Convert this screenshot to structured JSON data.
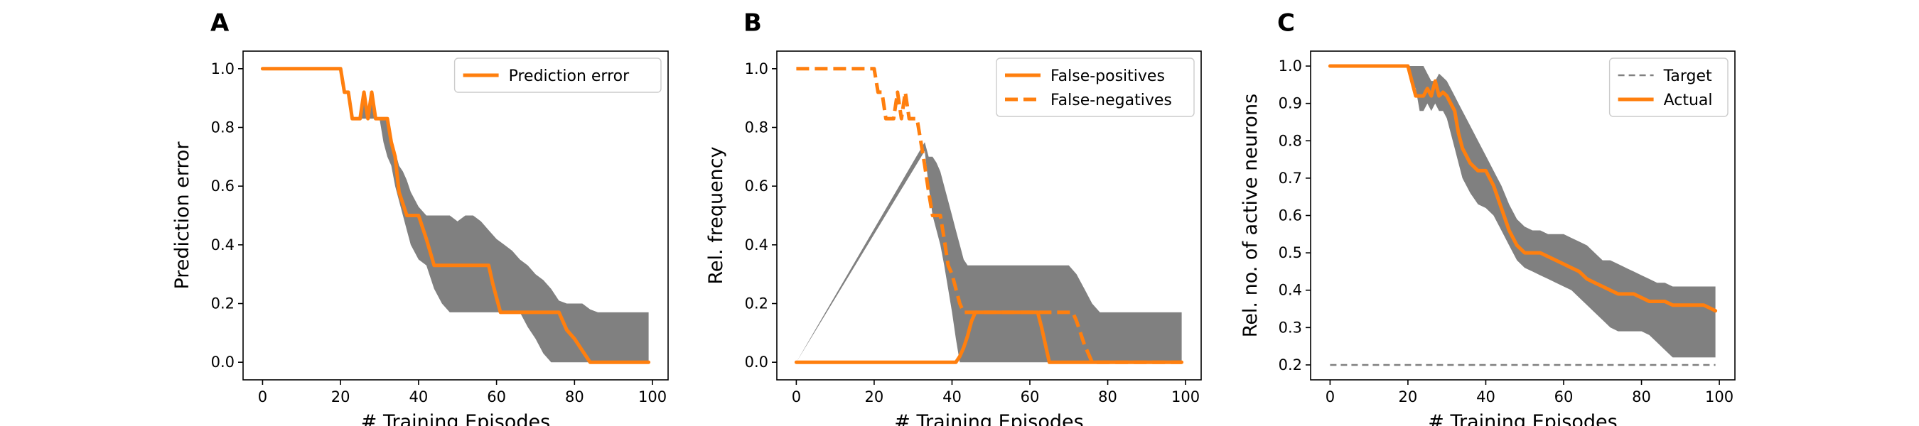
{
  "figure": {
    "background": "#ffffff"
  },
  "chart_data": [
    {
      "type": "line",
      "panel_letter": "A",
      "xlabel": "# Training Episodes",
      "ylabel": "Prediction error",
      "xlim": [
        -5,
        104
      ],
      "ylim": [
        -0.06,
        1.06
      ],
      "xticks": [
        0,
        20,
        40,
        60,
        80,
        100
      ],
      "xtick_labels": [
        "0",
        "20",
        "40",
        "60",
        "80",
        "100"
      ],
      "yticks": [
        0.0,
        0.2,
        0.4,
        0.6,
        0.8,
        1.0
      ],
      "ytick_labels": [
        "0.0",
        "0.2",
        "0.4",
        "0.6",
        "0.8",
        "1.0"
      ],
      "grid": false,
      "legend_position": "top-right",
      "band_color": "#808080",
      "band": {
        "x": [
          0,
          20,
          21,
          22,
          23,
          24,
          25,
          26,
          27,
          28,
          29,
          30,
          31,
          32,
          33,
          34,
          35,
          36,
          37,
          38,
          40,
          42,
          44,
          46,
          48,
          50,
          52,
          54,
          56,
          58,
          60,
          62,
          64,
          66,
          68,
          70,
          72,
          74,
          76,
          78,
          80,
          82,
          84,
          86,
          88,
          90,
          92,
          94,
          96,
          98,
          99
        ],
        "upper": [
          1.0,
          1.0,
          0.92,
          0.92,
          0.83,
          0.83,
          0.83,
          0.92,
          0.83,
          0.92,
          0.83,
          0.83,
          0.83,
          0.83,
          0.75,
          0.72,
          0.67,
          0.65,
          0.62,
          0.58,
          0.53,
          0.5,
          0.5,
          0.5,
          0.5,
          0.48,
          0.5,
          0.5,
          0.48,
          0.45,
          0.42,
          0.4,
          0.38,
          0.35,
          0.33,
          0.3,
          0.28,
          0.25,
          0.21,
          0.2,
          0.2,
          0.2,
          0.18,
          0.17,
          0.17,
          0.17,
          0.17,
          0.17,
          0.17,
          0.17,
          0.17
        ],
        "lower": [
          1.0,
          1.0,
          0.92,
          0.92,
          0.83,
          0.83,
          0.83,
          0.83,
          0.83,
          0.83,
          0.83,
          0.83,
          0.75,
          0.7,
          0.67,
          0.6,
          0.55,
          0.5,
          0.45,
          0.4,
          0.35,
          0.33,
          0.25,
          0.2,
          0.17,
          0.17,
          0.17,
          0.17,
          0.17,
          0.17,
          0.17,
          0.17,
          0.17,
          0.17,
          0.12,
          0.08,
          0.03,
          0.0,
          0.0,
          0.0,
          0.0,
          0.0,
          0.0,
          0.0,
          0.0,
          0.0,
          0.0,
          0.0,
          0.0,
          0.0,
          0.0
        ]
      },
      "series": [
        {
          "name": "Prediction error",
          "color": "#ff7f0e",
          "dash": "solid",
          "x": [
            0,
            20,
            21,
            22,
            23,
            24,
            25,
            26,
            27,
            28,
            29,
            30,
            31,
            32,
            33,
            34,
            35,
            36,
            37,
            38,
            40,
            42,
            44,
            46,
            48,
            50,
            52,
            54,
            56,
            57,
            58,
            59,
            60,
            61,
            62,
            64,
            66,
            68,
            70,
            72,
            74,
            76,
            77,
            78,
            80,
            82,
            84,
            86,
            88,
            90,
            92,
            94,
            96,
            98,
            99
          ],
          "y": [
            1.0,
            1.0,
            0.92,
            0.92,
            0.83,
            0.83,
            0.83,
            0.92,
            0.83,
            0.92,
            0.83,
            0.83,
            0.83,
            0.83,
            0.75,
            0.7,
            0.58,
            0.54,
            0.5,
            0.5,
            0.5,
            0.42,
            0.33,
            0.33,
            0.33,
            0.33,
            0.33,
            0.33,
            0.33,
            0.33,
            0.33,
            0.27,
            0.22,
            0.17,
            0.17,
            0.17,
            0.17,
            0.17,
            0.17,
            0.17,
            0.17,
            0.17,
            0.14,
            0.11,
            0.08,
            0.04,
            0.0,
            0.0,
            0.0,
            0.0,
            0.0,
            0.0,
            0.0,
            0.0,
            0.0
          ]
        }
      ]
    },
    {
      "type": "line",
      "panel_letter": "B",
      "xlabel": "# Training Episodes",
      "ylabel": "Rel. frequency",
      "xlim": [
        -5,
        104
      ],
      "ylim": [
        -0.06,
        1.06
      ],
      "xticks": [
        0,
        20,
        40,
        60,
        80,
        100
      ],
      "xtick_labels": [
        "0",
        "20",
        "40",
        "60",
        "80",
        "100"
      ],
      "yticks": [
        0.0,
        0.2,
        0.4,
        0.6,
        0.8,
        1.0
      ],
      "ytick_labels": [
        "0.0",
        "0.2",
        "0.4",
        "0.6",
        "0.8",
        "1.0"
      ],
      "grid": false,
      "legend_position": "top-right",
      "band_color": "#808080",
      "band": {
        "x": [
          0,
          33,
          34,
          35,
          36,
          37,
          38,
          39,
          40,
          41,
          42,
          43,
          44,
          45,
          46,
          48,
          50,
          52,
          54,
          56,
          58,
          60,
          62,
          64,
          66,
          68,
          70,
          72,
          74,
          76,
          78,
          80,
          82,
          84,
          86,
          88,
          90,
          92,
          94,
          96,
          98,
          99
        ],
        "upper": [
          0,
          0.75,
          0.7,
          0.7,
          0.68,
          0.65,
          0.6,
          0.55,
          0.5,
          0.45,
          0.4,
          0.35,
          0.33,
          0.33,
          0.33,
          0.33,
          0.33,
          0.33,
          0.33,
          0.33,
          0.33,
          0.33,
          0.33,
          0.33,
          0.33,
          0.33,
          0.33,
          0.3,
          0.25,
          0.2,
          0.17,
          0.17,
          0.17,
          0.17,
          0.17,
          0.17,
          0.17,
          0.17,
          0.17,
          0.17,
          0.17,
          0.17
        ],
        "lower": [
          0,
          0.72,
          0.6,
          0.5,
          0.45,
          0.4,
          0.33,
          0.25,
          0.17,
          0.08,
          0.0,
          0.0,
          0.0,
          0.0,
          0.0,
          0.0,
          0.0,
          0.0,
          0.0,
          0.0,
          0.0,
          0.0,
          0.0,
          0.0,
          0.0,
          0.0,
          0.0,
          0.0,
          0.0,
          0.0,
          0.0,
          0.0,
          0.0,
          0.0,
          0.0,
          0.0,
          0.0,
          0.0,
          0.0,
          0.0,
          0.0,
          0.0
        ]
      },
      "series": [
        {
          "name": "False-positives",
          "color": "#ff7f0e",
          "dash": "solid",
          "x": [
            0,
            41,
            42,
            43,
            44,
            45,
            46,
            48,
            50,
            52,
            54,
            56,
            58,
            60,
            62,
            63,
            64,
            65,
            66,
            68,
            70,
            80,
            90,
            99
          ],
          "y": [
            0,
            0,
            0.02,
            0.05,
            0.09,
            0.14,
            0.17,
            0.17,
            0.17,
            0.17,
            0.17,
            0.17,
            0.17,
            0.17,
            0.17,
            0.12,
            0.06,
            0.0,
            0.0,
            0.0,
            0.0,
            0.0,
            0.0,
            0.0
          ]
        },
        {
          "name": "False-negatives",
          "color": "#ff7f0e",
          "dash": "dashed",
          "x": [
            0,
            20,
            21,
            22,
            23,
            24,
            25,
            26,
            27,
            28,
            29,
            30,
            31,
            32,
            33,
            34,
            35,
            36,
            37,
            38,
            39,
            40,
            41,
            42,
            43,
            44,
            45,
            46,
            48,
            50,
            52,
            54,
            56,
            58,
            60,
            62,
            64,
            66,
            68,
            70,
            71,
            72,
            73,
            74,
            75,
            76,
            77,
            78,
            80,
            90,
            99
          ],
          "y": [
            1.0,
            1.0,
            0.92,
            0.92,
            0.83,
            0.83,
            0.83,
            0.92,
            0.83,
            0.92,
            0.83,
            0.83,
            0.83,
            0.75,
            0.67,
            0.58,
            0.5,
            0.5,
            0.5,
            0.42,
            0.33,
            0.3,
            0.25,
            0.2,
            0.17,
            0.17,
            0.17,
            0.17,
            0.17,
            0.17,
            0.17,
            0.17,
            0.17,
            0.17,
            0.17,
            0.17,
            0.17,
            0.17,
            0.17,
            0.17,
            0.17,
            0.14,
            0.1,
            0.06,
            0.03,
            0.0,
            0.0,
            0.0,
            0.0,
            0.0,
            0.0
          ]
        }
      ]
    },
    {
      "type": "line",
      "panel_letter": "C",
      "xlabel": "# Training Episodes",
      "ylabel": "Rel. no. of active neurons",
      "xlim": [
        -5,
        104
      ],
      "ylim": [
        0.16,
        1.04
      ],
      "xticks": [
        0,
        20,
        40,
        60,
        80,
        100
      ],
      "xtick_labels": [
        "0",
        "20",
        "40",
        "60",
        "80",
        "100"
      ],
      "yticks": [
        0.2,
        0.3,
        0.4,
        0.5,
        0.6,
        0.7,
        0.8,
        0.9,
        1.0
      ],
      "ytick_labels": [
        "0.2",
        "0.3",
        "0.4",
        "0.5",
        "0.6",
        "0.7",
        "0.8",
        "0.9",
        "1.0"
      ],
      "grid": false,
      "legend_position": "top-right",
      "band_color": "#808080",
      "band": {
        "x": [
          0,
          20,
          21,
          22,
          23,
          24,
          25,
          26,
          27,
          28,
          29,
          30,
          31,
          32,
          33,
          34,
          35,
          36,
          38,
          40,
          42,
          44,
          46,
          48,
          50,
          52,
          54,
          56,
          58,
          60,
          62,
          64,
          66,
          68,
          70,
          72,
          74,
          76,
          78,
          80,
          82,
          84,
          86,
          88,
          90,
          92,
          94,
          96,
          98,
          99
        ],
        "upper": [
          1.0,
          1.0,
          1.0,
          1.0,
          1.0,
          1.0,
          0.98,
          0.96,
          0.96,
          0.98,
          0.97,
          0.96,
          0.94,
          0.92,
          0.9,
          0.88,
          0.86,
          0.84,
          0.8,
          0.76,
          0.72,
          0.68,
          0.63,
          0.59,
          0.57,
          0.56,
          0.56,
          0.55,
          0.55,
          0.55,
          0.54,
          0.53,
          0.52,
          0.5,
          0.48,
          0.48,
          0.47,
          0.46,
          0.45,
          0.44,
          0.43,
          0.42,
          0.42,
          0.41,
          0.41,
          0.41,
          0.41,
          0.41,
          0.41,
          0.41
        ],
        "lower": [
          1.0,
          1.0,
          0.96,
          0.94,
          0.88,
          0.88,
          0.9,
          0.88,
          0.9,
          0.88,
          0.88,
          0.86,
          0.82,
          0.78,
          0.74,
          0.7,
          0.68,
          0.66,
          0.63,
          0.62,
          0.6,
          0.56,
          0.52,
          0.48,
          0.46,
          0.45,
          0.44,
          0.43,
          0.42,
          0.41,
          0.4,
          0.38,
          0.36,
          0.34,
          0.32,
          0.3,
          0.29,
          0.29,
          0.29,
          0.29,
          0.28,
          0.26,
          0.24,
          0.22,
          0.22,
          0.22,
          0.22,
          0.22,
          0.22,
          0.22
        ]
      },
      "series": [
        {
          "name": "Target",
          "color": "#808080",
          "dash": "dashed",
          "x": [
            0,
            99
          ],
          "y": [
            0.2,
            0.2
          ]
        },
        {
          "name": "Actual",
          "color": "#ff7f0e",
          "dash": "solid",
          "x": [
            0,
            20,
            21,
            22,
            23,
            24,
            25,
            26,
            27,
            28,
            29,
            30,
            31,
            32,
            33,
            34,
            35,
            36,
            38,
            40,
            42,
            44,
            46,
            48,
            50,
            52,
            54,
            56,
            58,
            60,
            62,
            64,
            66,
            68,
            70,
            72,
            74,
            76,
            78,
            80,
            82,
            84,
            86,
            88,
            90,
            92,
            94,
            96,
            98,
            99
          ],
          "y": [
            1.0,
            1.0,
            0.96,
            0.92,
            0.92,
            0.92,
            0.94,
            0.92,
            0.96,
            0.92,
            0.93,
            0.92,
            0.9,
            0.88,
            0.82,
            0.78,
            0.76,
            0.74,
            0.72,
            0.72,
            0.68,
            0.62,
            0.56,
            0.52,
            0.5,
            0.5,
            0.5,
            0.49,
            0.48,
            0.47,
            0.46,
            0.45,
            0.43,
            0.42,
            0.41,
            0.4,
            0.39,
            0.39,
            0.39,
            0.38,
            0.37,
            0.37,
            0.37,
            0.36,
            0.36,
            0.36,
            0.36,
            0.36,
            0.35,
            0.345
          ]
        }
      ]
    }
  ]
}
